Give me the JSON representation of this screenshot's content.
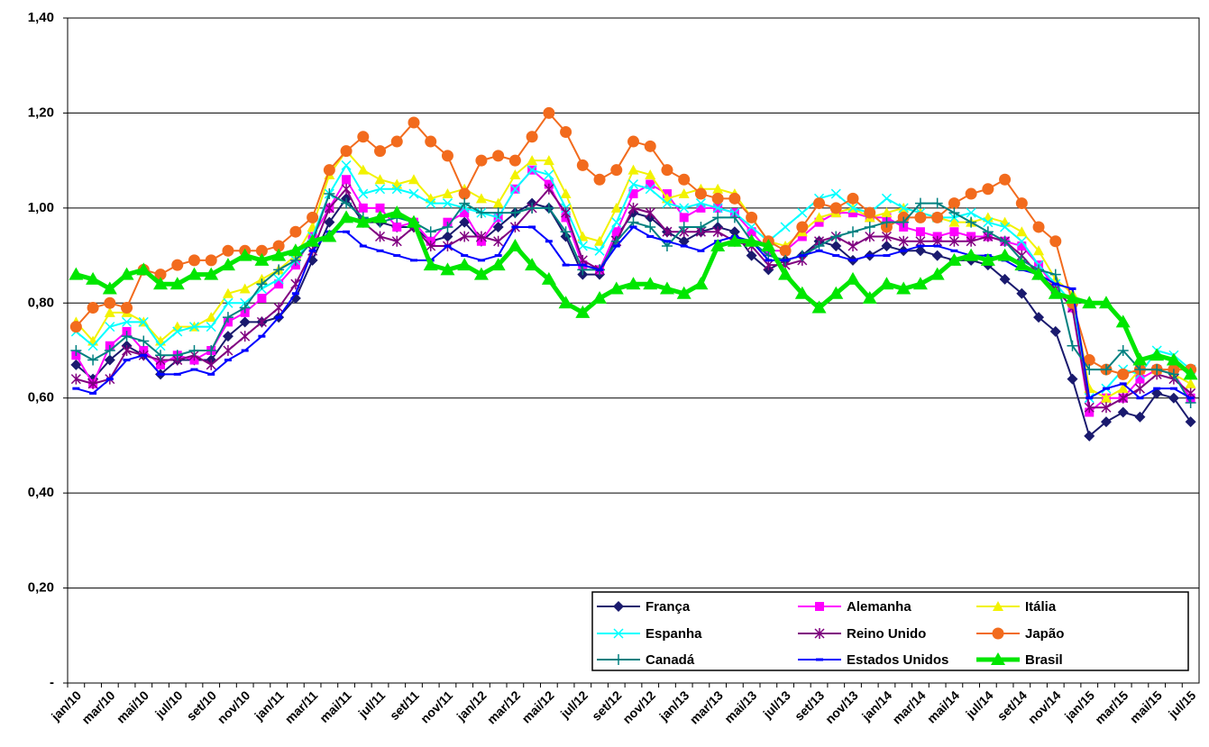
{
  "chart_data": {
    "type": "line",
    "categories": [
      "jan/10",
      null,
      "mar/10",
      null,
      "mai/10",
      null,
      "jul/10",
      null,
      "set/10",
      null,
      "nov/10",
      null,
      "jan/11",
      null,
      "mar/11",
      null,
      "mai/11",
      null,
      "jul/11",
      null,
      "set/11",
      null,
      "nov/11",
      null,
      "jan/12",
      null,
      "mar/12",
      null,
      "mai/12",
      null,
      "jul/12",
      null,
      "set/12",
      null,
      "nov/12",
      null,
      "jan/13",
      null,
      "mar/13",
      null,
      "mai/13",
      null,
      "jul/13",
      null,
      "set/13",
      null,
      "nov/13",
      null,
      "jan/14",
      null,
      "mar/14",
      null,
      "mai/14",
      null,
      "jul/14",
      null,
      "set/14",
      null,
      "nov/14",
      null,
      "jan/15",
      null,
      "mar/15",
      null,
      "mai/15",
      null,
      "jul/15"
    ],
    "ylim": [
      0,
      1.4
    ],
    "yticks": [
      {
        "value": 0,
        "label": "-"
      },
      {
        "value": 0.2,
        "label": "0,20"
      },
      {
        "value": 0.4,
        "label": "0,40"
      },
      {
        "value": 0.6,
        "label": "0,60"
      },
      {
        "value": 0.8,
        "label": "0,80"
      },
      {
        "value": 1.0,
        "label": "1,00"
      },
      {
        "value": 1.2,
        "label": "1,20"
      },
      {
        "value": 1.4,
        "label": "1,40"
      }
    ],
    "grid": true,
    "legend": "bottom-right",
    "series": [
      {
        "name": "França",
        "color": "#1a1a6e",
        "marker": "diamond",
        "values": [
          0.67,
          0.64,
          0.68,
          0.71,
          0.69,
          0.65,
          0.68,
          0.68,
          0.68,
          0.73,
          0.76,
          0.76,
          0.77,
          0.81,
          0.89,
          0.97,
          1.02,
          0.97,
          0.97,
          0.96,
          0.96,
          0.93,
          0.94,
          0.97,
          0.93,
          0.96,
          0.99,
          1.01,
          1.0,
          0.94,
          0.86,
          0.86,
          0.94,
          0.99,
          0.98,
          0.95,
          0.93,
          0.95,
          0.96,
          0.95,
          0.9,
          0.87,
          0.89,
          0.9,
          0.93,
          0.92,
          0.89,
          0.9,
          0.92,
          0.91,
          0.91,
          0.9,
          0.89,
          0.89,
          0.88,
          0.85,
          0.82,
          0.77,
          0.74,
          0.64,
          0.52,
          0.55,
          0.57,
          0.56,
          0.61,
          0.6,
          0.55
        ]
      },
      {
        "name": "Alemanha",
        "color": "#ff00ff",
        "marker": "square",
        "values": [
          0.69,
          0.63,
          0.71,
          0.74,
          0.7,
          0.67,
          0.69,
          0.68,
          0.7,
          0.76,
          0.78,
          0.81,
          0.84,
          0.88,
          0.94,
          1.0,
          1.06,
          1.0,
          1.0,
          0.96,
          0.97,
          0.93,
          0.97,
          0.99,
          0.93,
          0.98,
          1.04,
          1.08,
          1.05,
          0.98,
          0.88,
          0.87,
          0.95,
          1.03,
          1.05,
          1.03,
          0.98,
          1.0,
          1.0,
          0.99,
          0.95,
          0.91,
          0.91,
          0.94,
          0.97,
          0.99,
          0.99,
          0.98,
          0.98,
          0.96,
          0.95,
          0.94,
          0.95,
          0.94,
          0.94,
          0.93,
          0.92,
          0.88,
          0.83,
          0.79,
          0.57,
          0.6,
          0.6,
          0.64,
          0.66,
          0.65,
          0.6
        ]
      },
      {
        "name": "Itália",
        "color": "#f2f200",
        "marker": "triangle",
        "values": [
          0.76,
          0.72,
          0.78,
          0.78,
          0.76,
          0.72,
          0.75,
          0.75,
          0.77,
          0.82,
          0.83,
          0.85,
          0.87,
          0.9,
          0.96,
          1.07,
          1.12,
          1.08,
          1.06,
          1.05,
          1.06,
          1.02,
          1.03,
          1.04,
          1.02,
          1.01,
          1.07,
          1.1,
          1.1,
          1.03,
          0.94,
          0.93,
          1.0,
          1.08,
          1.07,
          1.02,
          1.03,
          1.04,
          1.04,
          1.03,
          0.98,
          0.93,
          0.92,
          0.95,
          0.98,
          0.99,
          1.0,
          0.98,
          0.99,
          1.0,
          0.99,
          0.98,
          0.97,
          0.97,
          0.98,
          0.97,
          0.95,
          0.91,
          0.85,
          0.82,
          0.62,
          0.6,
          0.62,
          0.66,
          0.66,
          0.65,
          0.63
        ]
      },
      {
        "name": "Espanha",
        "color": "#00ffff",
        "marker": "x",
        "values": [
          0.74,
          0.71,
          0.75,
          0.76,
          0.76,
          0.71,
          0.74,
          0.75,
          0.75,
          0.8,
          0.8,
          0.83,
          0.85,
          0.89,
          0.94,
          1.03,
          1.09,
          1.03,
          1.04,
          1.04,
          1.03,
          1.01,
          1.01,
          1.0,
          0.99,
          0.98,
          1.04,
          1.08,
          1.07,
          1.0,
          0.92,
          0.91,
          0.97,
          1.05,
          1.04,
          1.01,
          1.0,
          1.01,
          1.0,
          0.99,
          0.96,
          0.93,
          0.96,
          0.99,
          1.02,
          1.03,
          1.0,
          0.99,
          1.02,
          1.0,
          0.99,
          0.98,
          0.98,
          0.99,
          0.97,
          0.96,
          0.93,
          0.88,
          0.84,
          0.8,
          0.6,
          0.62,
          0.66,
          0.65,
          0.7,
          0.69,
          0.66
        ]
      },
      {
        "name": "Reino Unido",
        "color": "#800080",
        "marker": "star",
        "values": [
          0.64,
          0.63,
          0.64,
          0.7,
          0.69,
          0.68,
          0.68,
          0.69,
          0.67,
          0.7,
          0.73,
          0.76,
          0.79,
          0.84,
          0.91,
          1.0,
          1.04,
          0.97,
          0.94,
          0.93,
          0.96,
          0.92,
          0.92,
          0.94,
          0.94,
          0.93,
          0.96,
          1.0,
          1.04,
          0.99,
          0.89,
          0.87,
          0.93,
          1.0,
          0.99,
          0.95,
          0.95,
          0.95,
          0.95,
          0.93,
          0.92,
          0.88,
          0.88,
          0.89,
          0.93,
          0.94,
          0.92,
          0.94,
          0.94,
          0.93,
          0.93,
          0.93,
          0.93,
          0.93,
          0.94,
          0.93,
          0.9,
          0.86,
          0.83,
          0.79,
          0.58,
          0.58,
          0.6,
          0.62,
          0.65,
          0.64,
          0.61
        ]
      },
      {
        "name": "Japão",
        "color": "#f26b1d",
        "marker": "circle",
        "values": [
          0.75,
          0.79,
          0.8,
          0.79,
          0.87,
          0.86,
          0.88,
          0.89,
          0.89,
          0.91,
          0.91,
          0.91,
          0.92,
          0.95,
          0.98,
          1.08,
          1.12,
          1.15,
          1.12,
          1.14,
          1.18,
          1.14,
          1.11,
          1.03,
          1.1,
          1.11,
          1.1,
          1.15,
          1.2,
          1.16,
          1.09,
          1.06,
          1.08,
          1.14,
          1.13,
          1.08,
          1.06,
          1.03,
          1.02,
          1.02,
          0.98,
          0.93,
          0.91,
          0.96,
          1.01,
          1.0,
          1.02,
          0.99,
          0.96,
          0.98,
          0.98,
          0.98,
          1.01,
          1.03,
          1.04,
          1.06,
          1.01,
          0.96,
          0.93,
          0.8,
          0.68,
          0.66,
          0.65,
          0.66,
          0.66,
          0.66,
          0.66
        ]
      },
      {
        "name": "Canadá",
        "color": "#008080",
        "marker": "plus",
        "values": [
          0.7,
          0.68,
          0.7,
          0.73,
          0.72,
          0.69,
          0.69,
          0.7,
          0.7,
          0.77,
          0.79,
          0.84,
          0.87,
          0.89,
          0.93,
          1.03,
          1.01,
          0.98,
          0.97,
          0.98,
          0.97,
          0.95,
          0.96,
          1.01,
          0.99,
          0.99,
          0.99,
          1.0,
          1.0,
          0.95,
          0.87,
          0.87,
          0.93,
          0.97,
          0.96,
          0.92,
          0.96,
          0.96,
          0.98,
          0.98,
          0.93,
          0.9,
          0.89,
          0.9,
          0.92,
          0.94,
          0.95,
          0.96,
          0.97,
          0.97,
          1.01,
          1.01,
          0.99,
          0.97,
          0.95,
          0.93,
          0.89,
          0.87,
          0.86,
          0.71,
          0.66,
          0.66,
          0.7,
          0.66,
          0.66,
          0.65,
          0.59
        ]
      },
      {
        "name": "Estados Unidos",
        "color": "#0000ff",
        "marker": "dash",
        "values": [
          0.62,
          0.61,
          0.64,
          0.68,
          0.69,
          0.65,
          0.65,
          0.66,
          0.65,
          0.68,
          0.7,
          0.73,
          0.77,
          0.82,
          0.91,
          0.95,
          0.95,
          0.92,
          0.91,
          0.9,
          0.89,
          0.89,
          0.92,
          0.9,
          0.89,
          0.9,
          0.96,
          0.96,
          0.93,
          0.88,
          0.88,
          0.87,
          0.92,
          0.96,
          0.94,
          0.93,
          0.92,
          0.91,
          0.93,
          0.94,
          0.93,
          0.89,
          0.89,
          0.9,
          0.91,
          0.9,
          0.89,
          0.9,
          0.9,
          0.91,
          0.92,
          0.92,
          0.91,
          0.9,
          0.9,
          0.89,
          0.87,
          0.86,
          0.84,
          0.83,
          0.6,
          0.62,
          0.63,
          0.6,
          0.62,
          0.62,
          0.6
        ]
      },
      {
        "name": "Brasil",
        "color": "#00e600",
        "marker": "bigtriangle",
        "values": [
          0.86,
          0.85,
          0.83,
          0.86,
          0.87,
          0.84,
          0.84,
          0.86,
          0.86,
          0.88,
          0.9,
          0.89,
          0.9,
          0.91,
          0.93,
          0.94,
          0.98,
          0.97,
          0.98,
          0.99,
          0.97,
          0.88,
          0.87,
          0.88,
          0.86,
          0.88,
          0.92,
          0.88,
          0.85,
          0.8,
          0.78,
          0.81,
          0.83,
          0.84,
          0.84,
          0.83,
          0.82,
          0.84,
          0.92,
          0.93,
          0.93,
          0.92,
          0.86,
          0.82,
          0.79,
          0.82,
          0.85,
          0.81,
          0.84,
          0.83,
          0.84,
          0.86,
          0.89,
          0.9,
          0.89,
          0.9,
          0.88,
          0.86,
          0.82,
          0.81,
          0.8,
          0.8,
          0.76,
          0.68,
          0.69,
          0.68,
          0.65
        ]
      }
    ]
  }
}
